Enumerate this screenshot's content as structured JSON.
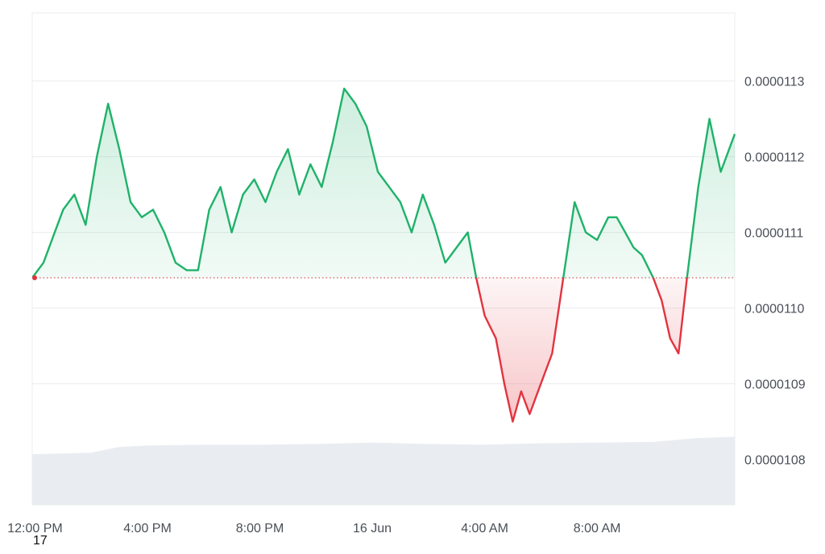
{
  "corner_label": "17",
  "colors": {
    "up_line": "#1fb26a",
    "up_fill": "#1fb26a",
    "down_line": "#e2343f",
    "down_fill": "#e2343f",
    "baseline": "#c9302c",
    "grid": "#e9ecef",
    "volume": "#e9edf1"
  },
  "chart_data": {
    "type": "line",
    "title": "",
    "xlabel": "",
    "ylabel": "",
    "ylim": [
      1.074e-05,
      1.139e-05
    ],
    "y_ticks": [
      1.08e-05,
      1.09e-05,
      1.1e-05,
      1.11e-05,
      1.12e-05,
      1.13e-05
    ],
    "y_tick_labels": [
      "0.0000108",
      "0.0000109",
      "0.0000110",
      "0.0000111",
      "0.0000112",
      "0.0000113"
    ],
    "x_tick_labels": [
      "12:00 PM",
      "4:00 PM",
      "8:00 PM",
      "16 Jun",
      "4:00 AM",
      "8:00 AM"
    ],
    "x_tick_hours": [
      12,
      16,
      20,
      24,
      28,
      32
    ],
    "x_range_hours": [
      11.9,
      36.9
    ],
    "baseline": 1.104e-05,
    "grid": true,
    "legend": "none",
    "series": [
      {
        "x": [
          11.9,
          12.3,
          12.7,
          13.0,
          13.4,
          13.8,
          14.2,
          14.6,
          15.0,
          15.4,
          15.8,
          16.2,
          16.6,
          17.0,
          17.4,
          17.8,
          18.2,
          18.6,
          19.0,
          19.4,
          19.8,
          20.2,
          20.6,
          21.0,
          21.4,
          21.8,
          22.2,
          22.6,
          23.0,
          23.4,
          23.8,
          24.2,
          24.6,
          25.0,
          25.4,
          25.8,
          26.2,
          26.6,
          27.0,
          27.4,
          27.7,
          28.0,
          28.4,
          28.7,
          29.0,
          29.3,
          29.6,
          30.0,
          30.4,
          30.8,
          31.2,
          31.6,
          32.0,
          32.4,
          32.7,
          33.0,
          33.3,
          33.6,
          34.0,
          34.3,
          34.6,
          34.9,
          35.2,
          35.6,
          36.0,
          36.4,
          36.9
        ],
        "values": [
          1.104e-05,
          1.106e-05,
          1.11e-05,
          1.113e-05,
          1.115e-05,
          1.111e-05,
          1.12e-05,
          1.127e-05,
          1.121e-05,
          1.114e-05,
          1.112e-05,
          1.113e-05,
          1.11e-05,
          1.106e-05,
          1.105e-05,
          1.105e-05,
          1.113e-05,
          1.116e-05,
          1.11e-05,
          1.115e-05,
          1.117e-05,
          1.114e-05,
          1.118e-05,
          1.121e-05,
          1.115e-05,
          1.119e-05,
          1.116e-05,
          1.122e-05,
          1.129e-05,
          1.127e-05,
          1.124e-05,
          1.118e-05,
          1.116e-05,
          1.114e-05,
          1.11e-05,
          1.115e-05,
          1.111e-05,
          1.106e-05,
          1.108e-05,
          1.11e-05,
          1.104e-05,
          1.099e-05,
          1.096e-05,
          1.09e-05,
          1.085e-05,
          1.089e-05,
          1.086e-05,
          1.09e-05,
          1.094e-05,
          1.104e-05,
          1.114e-05,
          1.11e-05,
          1.109e-05,
          1.112e-05,
          1.112e-05,
          1.11e-05,
          1.108e-05,
          1.107e-05,
          1.104e-05,
          1.101e-05,
          1.096e-05,
          1.094e-05,
          1.104e-05,
          1.116e-05,
          1.125e-05,
          1.118e-05,
          1.123e-05
        ]
      }
    ],
    "volume": {
      "x": [
        11.9,
        13.0,
        14.0,
        15.0,
        16.0,
        18.0,
        20.0,
        22.0,
        24.0,
        26.0,
        28.0,
        30.0,
        32.0,
        34.0,
        35.5,
        36.9
      ],
      "values": [
        7.0,
        7.1,
        7.2,
        8.0,
        8.2,
        8.3,
        8.3,
        8.4,
        8.6,
        8.4,
        8.3,
        8.5,
        8.6,
        8.7,
        9.2,
        9.4
      ]
    }
  }
}
